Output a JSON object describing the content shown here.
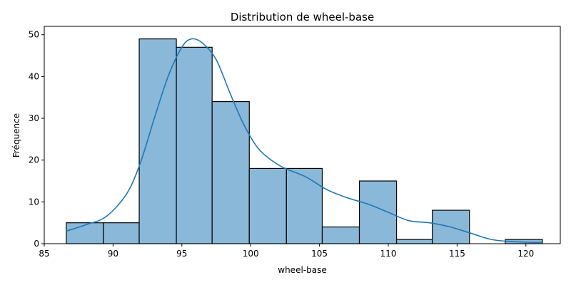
{
  "chart_data": {
    "type": "bar",
    "title": "Distribution de wheel-base",
    "xlabel": "wheel-base",
    "ylabel": "Fréquence",
    "xlim": [
      85,
      122.5
    ],
    "ylim": [
      0,
      52
    ],
    "x_ticks": [
      85,
      90,
      95,
      100,
      105,
      110,
      115,
      120
    ],
    "y_ticks": [
      0,
      10,
      20,
      30,
      40,
      50
    ],
    "bins": [
      {
        "start": 86.6,
        "end": 89.3,
        "count": 5
      },
      {
        "start": 89.3,
        "end": 91.9,
        "count": 5
      },
      {
        "start": 91.9,
        "end": 94.6,
        "count": 49
      },
      {
        "start": 94.6,
        "end": 97.2,
        "count": 47
      },
      {
        "start": 97.2,
        "end": 99.9,
        "count": 34
      },
      {
        "start": 99.9,
        "end": 102.6,
        "count": 18
      },
      {
        "start": 102.6,
        "end": 105.2,
        "count": 18
      },
      {
        "start": 105.2,
        "end": 107.9,
        "count": 4
      },
      {
        "start": 107.9,
        "end": 110.6,
        "count": 15
      },
      {
        "start": 110.6,
        "end": 113.2,
        "count": 1
      },
      {
        "start": 113.2,
        "end": 115.9,
        "count": 8
      },
      {
        "start": 115.9,
        "end": 118.5,
        "count": 0
      },
      {
        "start": 118.5,
        "end": 121.2,
        "count": 1
      }
    ],
    "kde": {
      "x": [
        86.6,
        88.0,
        89.5,
        91.0,
        92.0,
        93.0,
        94.0,
        95.0,
        95.7,
        96.5,
        97.5,
        98.5,
        99.5,
        100.5,
        101.5,
        102.5,
        104.0,
        105.5,
        107.0,
        108.5,
        110.0,
        111.5,
        113.0,
        114.5,
        116.0,
        117.5,
        119.0,
        120.5,
        121.2
      ],
      "y": [
        3,
        4.5,
        6.5,
        12,
        19.5,
        30,
        40,
        47,
        49,
        48,
        44,
        36,
        28.5,
        23,
        20,
        18,
        16,
        13,
        11,
        9.5,
        7.5,
        5.5,
        5,
        4,
        2.5,
        1,
        0.5,
        0.3,
        0.3
      ]
    },
    "colors": {
      "bar_fill": "#8ab8d9",
      "bar_edge": "#000000",
      "kde_line": "#1f77b4"
    },
    "grid": false,
    "legend": "none"
  }
}
